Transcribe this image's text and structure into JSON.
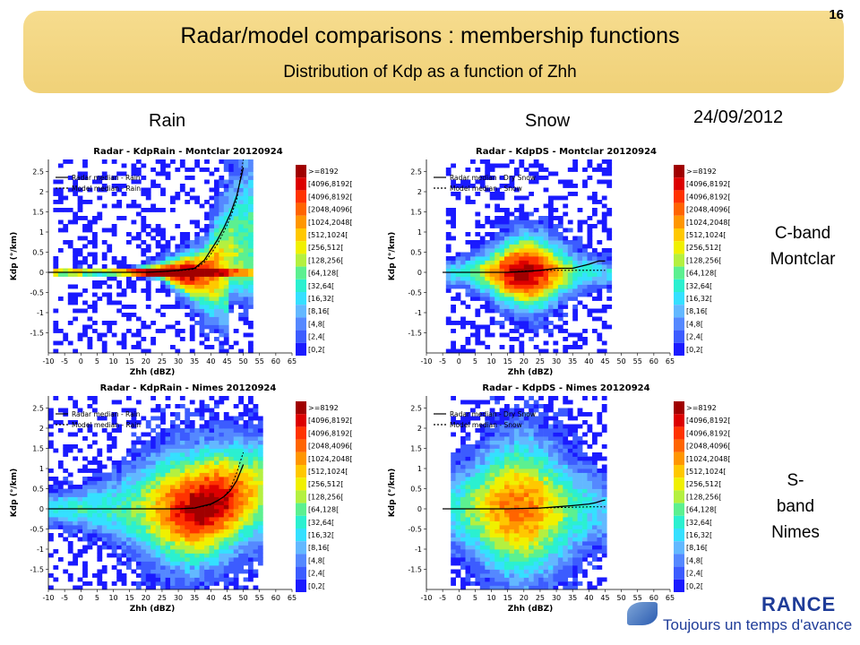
{
  "slide": {
    "number": "16",
    "title": "Radar/model comparisons : membership functions",
    "subtitle": "Distribution of Kdp as a function of Zhh",
    "col_rain": "Rain",
    "col_snow": "Snow",
    "date": "24/09/2012",
    "row1_label_line1": "C-band",
    "row1_label_line2": "Montclar",
    "row2_label_line1": "S-",
    "row2_label_line2": "band",
    "row2_label_line3": "Nimes",
    "brand_name": "RANCE",
    "brand_tagline": "Toujours un temps d'avance"
  },
  "colors": {
    "banner": "#f2d47e",
    "colorscale": [
      "#1a1aff",
      "#3c5cff",
      "#5588ff",
      "#63b8ff",
      "#35e0ff",
      "#2bf0d0",
      "#5cf090",
      "#b4f040",
      "#f0f000",
      "#ffc800",
      "#ff9600",
      "#ff6400",
      "#ff3200",
      "#dc0000",
      "#a00000"
    ],
    "rain_median": "#000000",
    "model_median": "#000000"
  },
  "chart_data": [
    {
      "type": "heatmap",
      "title": "Radar - KdpRain - Montclar 20120924",
      "xlabel": "Zhh (dBZ)",
      "ylabel": "Kdp (°/km)",
      "xlim": [
        -10,
        65
      ],
      "ylim": [
        -2,
        2.8
      ],
      "xticks": [
        -10,
        -5,
        0,
        5,
        10,
        15,
        20,
        25,
        30,
        35,
        40,
        45,
        50,
        55,
        60,
        65
      ],
      "yticks": [
        -1.5,
        -1,
        -0.5,
        0,
        0.5,
        1,
        1.5,
        2,
        2.5
      ],
      "legend_entries": [
        "Radar median - Rain",
        "Model median - Rain"
      ],
      "color_bins": [
        ">=8192",
        "[4096,8192[",
        "[4096,8192[",
        "[2048,4096[",
        "[1024,2048[",
        "[512,1024[",
        "[256,512[",
        "[128,256[",
        "[64,128[",
        "[32,64[",
        "[16,32[",
        "[8,16[",
        "[4,8[",
        "[2,4[",
        "[0,2["
      ],
      "radar_median": {
        "x": [
          -10,
          0,
          10,
          20,
          25,
          30,
          35,
          38,
          40,
          42,
          44,
          46,
          48,
          50
        ],
        "y": [
          0,
          0,
          0,
          0,
          0.02,
          0.05,
          0.1,
          0.3,
          0.55,
          0.8,
          1.1,
          1.45,
          1.9,
          2.6
        ]
      },
      "model_median": {
        "x": [
          -10,
          0,
          10,
          20,
          25,
          30,
          35,
          38,
          40,
          42,
          44,
          46,
          48,
          50
        ],
        "y": [
          0,
          0,
          0,
          0,
          0.02,
          0.04,
          0.08,
          0.25,
          0.45,
          0.7,
          1.0,
          1.35,
          1.8,
          2.8
        ]
      }
    },
    {
      "type": "heatmap",
      "title": "Radar - KdpDS - Montclar 20120924",
      "xlabel": "Zhh (dBZ)",
      "ylabel": "Kdp (°/km)",
      "xlim": [
        -10,
        65
      ],
      "ylim": [
        -2,
        2.8
      ],
      "xticks": [
        -10,
        -5,
        0,
        5,
        10,
        15,
        20,
        25,
        30,
        35,
        40,
        45,
        50,
        55,
        60,
        65
      ],
      "yticks": [
        -1.5,
        -1,
        -0.5,
        0,
        0.5,
        1,
        1.5,
        2,
        2.5
      ],
      "legend_entries": [
        "Radar median - Dry Snow",
        "Model median - Snow"
      ],
      "color_bins": [
        ">=8192",
        "[4096,8192[",
        "[4096,8192[",
        "[2048,4096[",
        "[1024,2048[",
        "[512,1024[",
        "[256,512[",
        "[128,256[",
        "[64,128[",
        "[32,64[",
        "[16,32[",
        "[8,16[",
        "[4,8[",
        "[2,4[",
        "[0,2["
      ],
      "radar_median": {
        "x": [
          -5,
          5,
          15,
          20,
          25,
          30,
          35,
          40,
          43,
          45
        ],
        "y": [
          0,
          0,
          0,
          0.02,
          0.05,
          0.1,
          0.1,
          0.2,
          0.28,
          0.28
        ]
      },
      "model_median": {
        "x": [
          -5,
          5,
          15,
          20,
          25,
          30,
          35,
          40,
          45
        ],
        "y": [
          0,
          0,
          0,
          0.03,
          0.05,
          0.05,
          0.05,
          0.05,
          0.05
        ]
      }
    },
    {
      "type": "heatmap",
      "title": "Radar - KdpRain - Nimes 20120924",
      "xlabel": "Zhh (dBZ)",
      "ylabel": "Kdp (°/km)",
      "xlim": [
        -10,
        65
      ],
      "ylim": [
        -2,
        2.8
      ],
      "xticks": [
        -10,
        -5,
        0,
        5,
        10,
        15,
        20,
        25,
        30,
        35,
        40,
        45,
        50,
        55,
        60,
        65
      ],
      "yticks": [
        -1.5,
        -1,
        -0.5,
        0,
        0.5,
        1,
        1.5,
        2,
        2.5
      ],
      "legend_entries": [
        "Radar median - Rain",
        "Model median - Rain"
      ],
      "color_bins": [
        ">=8192",
        "[4096,8192[",
        "[4096,8192[",
        "[2048,4096[",
        "[1024,2048[",
        "[512,1024[",
        "[256,512[",
        "[128,256[",
        "[64,128[",
        "[32,64[",
        "[16,32[",
        "[8,16[",
        "[4,8[",
        "[2,4[",
        "[0,2["
      ],
      "radar_median": {
        "x": [
          -10,
          0,
          10,
          20,
          30,
          35,
          38,
          40,
          42,
          44,
          46,
          48,
          50
        ],
        "y": [
          0,
          0,
          0,
          0,
          0,
          0.02,
          0.08,
          0.12,
          0.2,
          0.3,
          0.45,
          0.7,
          1.1
        ]
      },
      "model_median": {
        "x": [
          -10,
          0,
          10,
          20,
          30,
          35,
          40,
          44,
          46,
          48,
          50
        ],
        "y": [
          0,
          0,
          0,
          0,
          0,
          0.02,
          0.1,
          0.3,
          0.5,
          0.9,
          1.4
        ]
      }
    },
    {
      "type": "heatmap",
      "title": "Radar - KdpDS - Nimes 20120924",
      "xlabel": "Zhh (dBZ)",
      "ylabel": "Kdp (°/km)",
      "xlim": [
        -10,
        65
      ],
      "ylim": [
        -2,
        2.8
      ],
      "xticks": [
        -10,
        -5,
        0,
        5,
        10,
        15,
        20,
        25,
        30,
        35,
        40,
        45,
        50,
        55,
        60,
        65
      ],
      "yticks": [
        -1.5,
        -1,
        -0.5,
        0,
        0.5,
        1,
        1.5,
        2,
        2.5
      ],
      "legend_entries": [
        "Radar median - Dry Snow",
        "Model median - Snow"
      ],
      "color_bins": [
        ">=8192",
        "[4096,8192[",
        "[4096,8192[",
        "[2048,4096[",
        "[1024,2048[",
        "[512,1024[",
        "[256,512[",
        "[128,256[",
        "[64,128[",
        "[32,64[",
        "[16,32[",
        "[8,16[",
        "[4,8[",
        "[2,4[",
        "[0,2["
      ],
      "radar_median": {
        "x": [
          -5,
          5,
          15,
          25,
          30,
          35,
          40,
          42,
          44,
          45
        ],
        "y": [
          0,
          0,
          0,
          0.02,
          0.05,
          0.08,
          0.12,
          0.15,
          0.2,
          0.22
        ]
      },
      "model_median": {
        "x": [
          -5,
          5,
          15,
          25,
          30,
          35,
          40,
          45
        ],
        "y": [
          0,
          0,
          0,
          0.02,
          0.03,
          0.04,
          0.05,
          0.05
        ]
      }
    }
  ]
}
